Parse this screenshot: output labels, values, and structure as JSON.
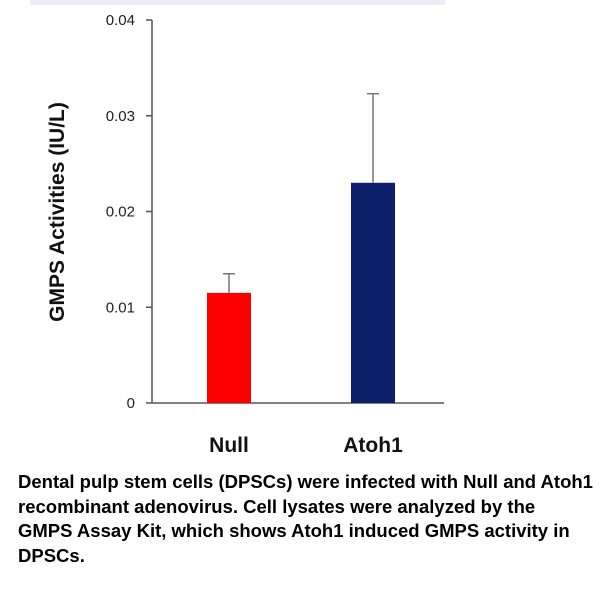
{
  "chart_data": {
    "type": "bar",
    "categories": [
      "Null",
      "Atoh1"
    ],
    "values": [
      0.0115,
      0.023
    ],
    "errors": [
      0.002,
      0.0093
    ],
    "colors": [
      "#ff0000",
      "#0d1f6b"
    ],
    "ylabel": "GMPS Activities (IU/L)",
    "ylim": [
      0,
      0.04
    ],
    "yticks": [
      0,
      0.01,
      0.02,
      0.03,
      0.04
    ],
    "ytick_labels": [
      "0",
      "0.01",
      "0.02",
      "0.03",
      "0.04"
    ],
    "grid": false
  },
  "caption": "Dental pulp stem cells (DPSCs) were infected with Null and Atoh1 recombinant adenovirus. Cell lysates were analyzed by the GMPS Assay Kit, which shows Atoh1 induced GMPS activity in DPSCs."
}
